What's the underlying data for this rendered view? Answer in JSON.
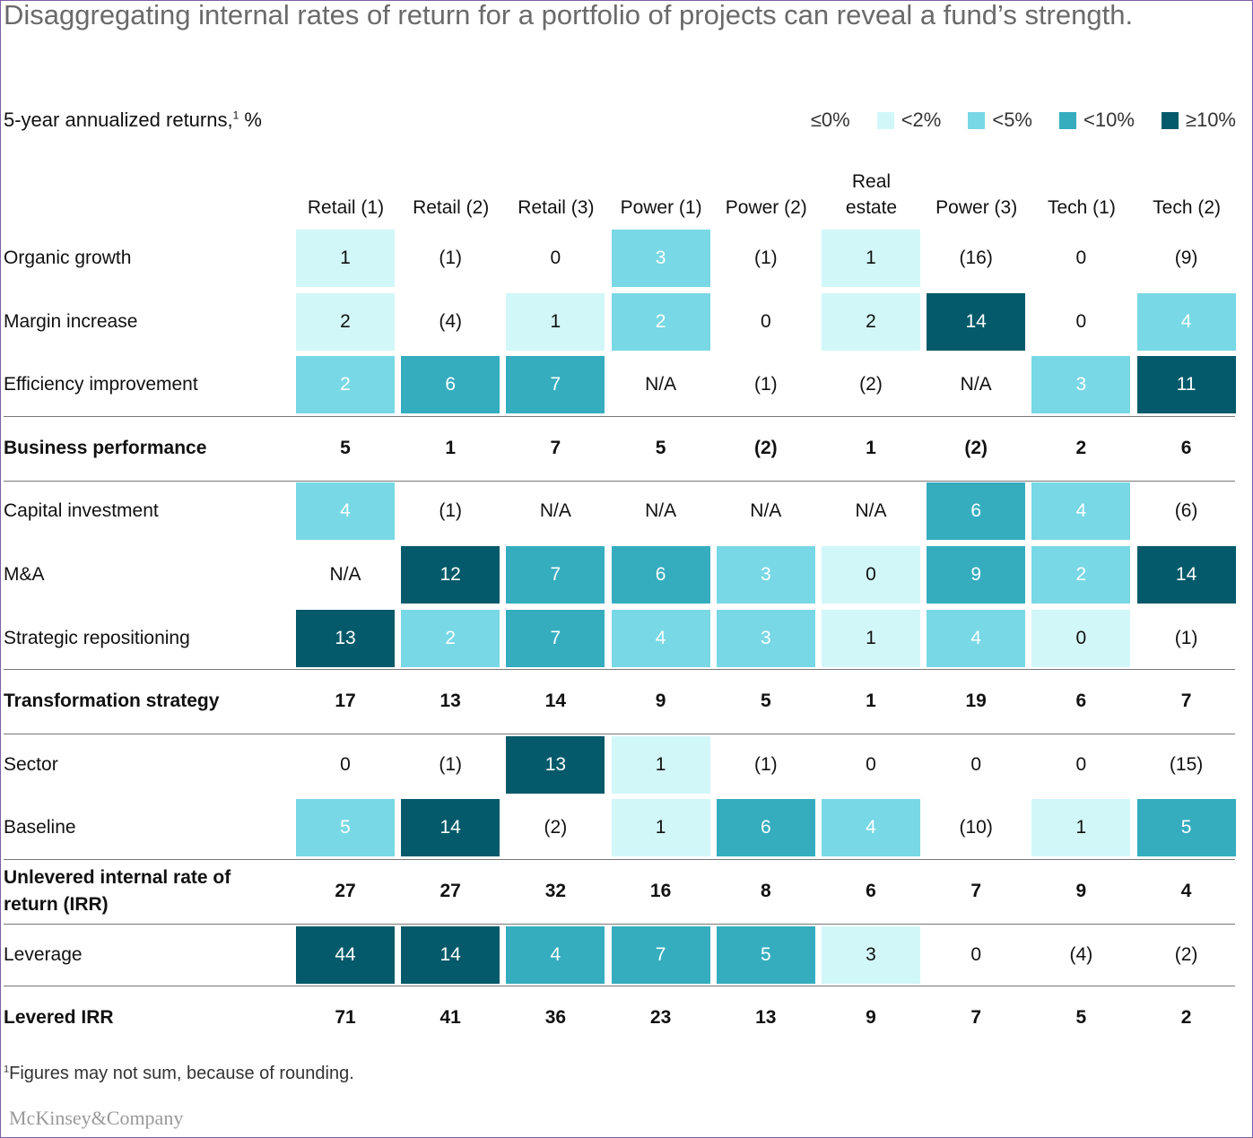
{
  "title": "Disaggregating internal rates of return for a portfolio of projects can reveal a fund’s strength.",
  "subtitle": "5-year annualized returns,",
  "subtitle_sup": "1",
  "subtitle_unit": " %",
  "legend": [
    {
      "label": "≤0%",
      "color": "#ffffff"
    },
    {
      "label": "<2%",
      "color": "#d2f7f8"
    },
    {
      "label": "<5%",
      "color": "#79d8e5"
    },
    {
      "label": "<10%",
      "color": "#35adbf"
    },
    {
      "label": "≥10%",
      "color": "#045a6a"
    }
  ],
  "footnote_sup": "1",
  "footnote": "Figures may not sum, because of rounding.",
  "brand": "McKinsey&Company",
  "chart_data": {
    "type": "table",
    "title": "Disaggregating internal rates of return for a portfolio of projects can reveal a fund’s strength.",
    "unit": "%",
    "columns": [
      {
        "label": "Retail (1)"
      },
      {
        "label": "Retail (2)"
      },
      {
        "label": "Retail (3)"
      },
      {
        "label": "Power (1)"
      },
      {
        "label": "Power (2)"
      },
      {
        "label": "Real\nestate"
      },
      {
        "label": "Power (3)"
      },
      {
        "label": "Tech (1)"
      },
      {
        "label": "Tech (2)"
      }
    ],
    "rows": [
      {
        "label": "Organic growth",
        "bold": false,
        "values": [
          "1",
          "(1)",
          "0",
          "3",
          "(1)",
          "1",
          "(16)",
          "0",
          "(9)"
        ],
        "levels": [
          1,
          0,
          0,
          2,
          0,
          1,
          0,
          0,
          0
        ]
      },
      {
        "label": "Margin increase",
        "bold": false,
        "values": [
          "2",
          "(4)",
          "1",
          "2",
          "0",
          "2",
          "14",
          "0",
          "4"
        ],
        "levels": [
          1,
          0,
          1,
          2,
          0,
          1,
          4,
          0,
          2
        ]
      },
      {
        "label": "Efficiency improvement",
        "bold": false,
        "values": [
          "2",
          "6",
          "7",
          "N/A",
          "(1)",
          "(2)",
          "N/A",
          "3",
          "11"
        ],
        "levels": [
          2,
          3,
          3,
          0,
          0,
          0,
          0,
          2,
          4
        ]
      },
      {
        "label": "Business performance",
        "bold": true,
        "values": [
          "5",
          "1",
          "7",
          "5",
          "(2)",
          "1",
          "(2)",
          "2",
          "6"
        ],
        "levels": [
          0,
          0,
          0,
          0,
          0,
          0,
          0,
          0,
          0
        ]
      },
      {
        "label": "Capital investment",
        "bold": false,
        "values": [
          "4",
          "(1)",
          "N/A",
          "N/A",
          "N/A",
          "N/A",
          "6",
          "4",
          "(6)"
        ],
        "levels": [
          2,
          0,
          0,
          0,
          0,
          0,
          3,
          2,
          0
        ]
      },
      {
        "label": "M&A",
        "bold": false,
        "values": [
          "N/A",
          "12",
          "7",
          "6",
          "3",
          "0",
          "9",
          "2",
          "14"
        ],
        "levels": [
          0,
          4,
          3,
          3,
          2,
          1,
          3,
          2,
          4
        ]
      },
      {
        "label": "Strategic repositioning",
        "bold": false,
        "values": [
          "13",
          "2",
          "7",
          "4",
          "3",
          "1",
          "4",
          "0",
          "(1)"
        ],
        "levels": [
          4,
          2,
          3,
          2,
          2,
          1,
          2,
          1,
          0
        ]
      },
      {
        "label": "Transformation strategy",
        "bold": true,
        "values": [
          "17",
          "13",
          "14",
          "9",
          "5",
          "1",
          "19",
          "6",
          "7"
        ],
        "levels": [
          0,
          0,
          0,
          0,
          0,
          0,
          0,
          0,
          0
        ]
      },
      {
        "label": "Sector",
        "bold": false,
        "values": [
          "0",
          "(1)",
          "13",
          "1",
          "(1)",
          "0",
          "0",
          "0",
          "(15)"
        ],
        "levels": [
          0,
          0,
          4,
          1,
          0,
          0,
          0,
          0,
          0
        ]
      },
      {
        "label": "Baseline",
        "bold": false,
        "values": [
          "5",
          "14",
          "(2)",
          "1",
          "6",
          "4",
          "(10)",
          "1",
          "5"
        ],
        "levels": [
          2,
          4,
          0,
          1,
          3,
          2,
          0,
          1,
          3
        ]
      },
      {
        "label": "Unlevered internal rate of return (IRR)",
        "bold": true,
        "values": [
          "27",
          "27",
          "32",
          "16",
          "8",
          "6",
          "7",
          "9",
          "4"
        ],
        "levels": [
          0,
          0,
          0,
          0,
          0,
          0,
          0,
          0,
          0
        ]
      },
      {
        "label": "Leverage",
        "bold": false,
        "values": [
          "44",
          "14",
          "4",
          "7",
          "5",
          "3",
          "0",
          "(4)",
          "(2)"
        ],
        "levels": [
          4,
          4,
          3,
          3,
          3,
          1,
          0,
          0,
          0
        ]
      },
      {
        "label": "Levered IRR",
        "bold": true,
        "values": [
          "71",
          "41",
          "36",
          "23",
          "13",
          "9",
          "7",
          "5",
          "2"
        ],
        "levels": [
          0,
          0,
          0,
          0,
          0,
          0,
          0,
          0,
          0
        ]
      }
    ]
  }
}
